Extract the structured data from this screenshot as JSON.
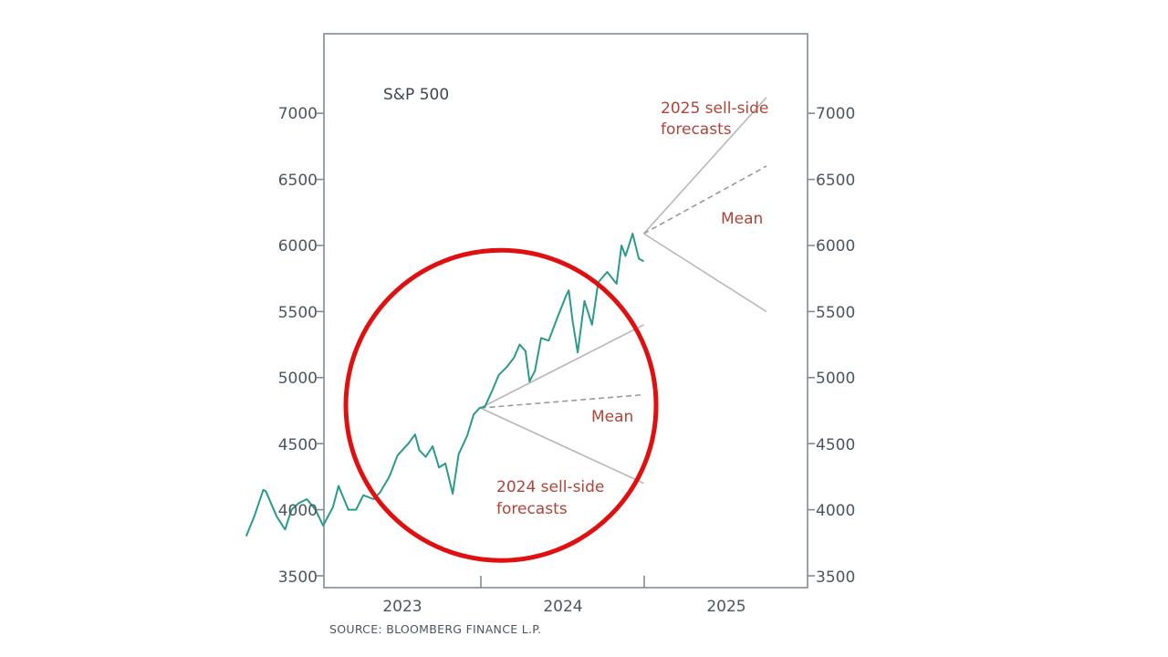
{
  "chart_data": {
    "type": "line",
    "title": "S&P 500",
    "source": "SOURCE: BLOOMBERG FINANCE L.P.",
    "x_range": [
      "2022-07-01",
      "2025-10-01"
    ],
    "xticks": [
      "2023",
      "2024",
      "2025"
    ],
    "ylim": [
      3400,
      7600
    ],
    "yticks": [
      3500,
      4000,
      4500,
      5000,
      5500,
      6000,
      6500,
      7000
    ],
    "yticks_left_labels": [
      "3500",
      "4000",
      "4500",
      "5000",
      "5500",
      "6000",
      "6500",
      "7000"
    ],
    "yticks_right_labels": [
      "3500",
      "4000",
      "4500",
      "5000",
      "5500",
      "6000",
      "6500",
      "7000"
    ],
    "grid": false,
    "series": [
      {
        "type": "line",
        "color": "#2a9a8a",
        "points": [
          [
            "2022-07-01",
            3800
          ],
          [
            "2022-07-20",
            3950
          ],
          [
            "2022-08-10",
            4150
          ],
          [
            "2022-08-16",
            4140
          ],
          [
            "2022-09-10",
            3950
          ],
          [
            "2022-09-30",
            3850
          ],
          [
            "2022-10-15",
            4000
          ],
          [
            "2022-11-01",
            4050
          ],
          [
            "2022-11-20",
            4080
          ],
          [
            "2022-12-10",
            4000
          ],
          [
            "2022-12-28",
            3880
          ],
          [
            "2023-01-20",
            4020
          ],
          [
            "2023-02-02",
            4180
          ],
          [
            "2023-02-25",
            4000
          ],
          [
            "2023-03-15",
            4000
          ],
          [
            "2023-04-01",
            4110
          ],
          [
            "2023-04-25",
            4080
          ],
          [
            "2023-05-10",
            4130
          ],
          [
            "2023-06-01",
            4250
          ],
          [
            "2023-06-20",
            4410
          ],
          [
            "2023-07-15",
            4500
          ],
          [
            "2023-07-31",
            4570
          ],
          [
            "2023-08-10",
            4450
          ],
          [
            "2023-08-25",
            4400
          ],
          [
            "2023-09-10",
            4480
          ],
          [
            "2023-09-25",
            4320
          ],
          [
            "2023-10-10",
            4350
          ],
          [
            "2023-10-27",
            4120
          ],
          [
            "2023-11-10",
            4420
          ],
          [
            "2023-11-30",
            4560
          ],
          [
            "2023-12-15",
            4720
          ],
          [
            "2023-12-29",
            4770
          ],
          [
            "2024-01-10",
            4780
          ],
          [
            "2024-01-25",
            4890
          ],
          [
            "2024-02-10",
            5020
          ],
          [
            "2024-02-28",
            5080
          ],
          [
            "2024-03-15",
            5150
          ],
          [
            "2024-03-28",
            5250
          ],
          [
            "2024-04-10",
            5200
          ],
          [
            "2024-04-19",
            4970
          ],
          [
            "2024-05-01",
            5050
          ],
          [
            "2024-05-15",
            5300
          ],
          [
            "2024-06-01",
            5280
          ],
          [
            "2024-06-20",
            5450
          ],
          [
            "2024-07-10",
            5620
          ],
          [
            "2024-07-16",
            5660
          ],
          [
            "2024-07-25",
            5420
          ],
          [
            "2024-08-05",
            5190
          ],
          [
            "2024-08-20",
            5580
          ],
          [
            "2024-09-06",
            5400
          ],
          [
            "2024-09-20",
            5720
          ],
          [
            "2024-10-10",
            5800
          ],
          [
            "2024-10-31",
            5710
          ],
          [
            "2024-11-11",
            6000
          ],
          [
            "2024-11-20",
            5920
          ],
          [
            "2024-12-06",
            6090
          ],
          [
            "2024-12-20",
            5900
          ],
          [
            "2024-12-31",
            5880
          ]
        ]
      },
      {
        "name": "2024 high forecast",
        "type": "line",
        "color": "#b8b8b8",
        "dash": false,
        "points": [
          [
            "2023-12-31",
            4770
          ],
          [
            "2024-12-31",
            5400
          ]
        ]
      },
      {
        "name": "2024 mean forecast",
        "type": "line",
        "color": "#9a9a9a",
        "dash": true,
        "points": [
          [
            "2023-12-31",
            4770
          ],
          [
            "2024-12-31",
            4870
          ]
        ]
      },
      {
        "name": "2024 low forecast",
        "type": "line",
        "color": "#b8b8b8",
        "dash": false,
        "points": [
          [
            "2023-12-31",
            4770
          ],
          [
            "2024-12-31",
            4200
          ]
        ]
      },
      {
        "name": "2025 high forecast",
        "type": "line",
        "color": "#b8b8b8",
        "dash": false,
        "points": [
          [
            "2024-12-31",
            6090
          ],
          [
            "2025-10-01",
            7120
          ]
        ]
      },
      {
        "name": "2025 mean forecast",
        "type": "line",
        "color": "#9a9a9a",
        "dash": true,
        "points": [
          [
            "2024-12-31",
            6090
          ],
          [
            "2025-10-01",
            6600
          ]
        ]
      },
      {
        "name": "2025 low forecast",
        "type": "line",
        "color": "#b8b8b8",
        "dash": false,
        "points": [
          [
            "2024-12-31",
            6090
          ],
          [
            "2025-10-01",
            5500
          ]
        ]
      }
    ],
    "annotations": {
      "forecast_2025_line1": "2025 sell-side",
      "forecast_2025_line2": "forecasts",
      "mean_2025": "Mean",
      "mean_2024": "Mean",
      "forecast_2024_line1": "2024 sell-side",
      "forecast_2024_line2": "forecasts"
    },
    "highlight": {
      "shape": "circle",
      "color": "#e01010",
      "center": [
        "2024-02-15",
        4790
      ],
      "radius_years": 0.95
    }
  }
}
